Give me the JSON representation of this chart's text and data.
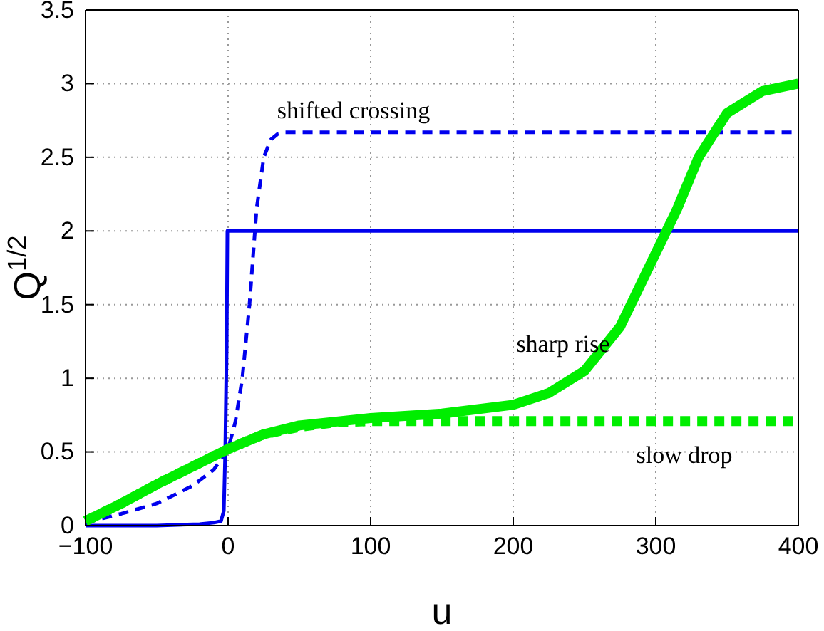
{
  "chart_data": {
    "type": "line",
    "xlabel": "u",
    "ylabel": "Q$^{1/2}$",
    "xlim": [
      -100,
      400
    ],
    "ylim": [
      0,
      3.5
    ],
    "xticks": [
      {
        "value": -100,
        "label": "−100"
      },
      0,
      100,
      200,
      300,
      400
    ],
    "yticks": [
      0,
      0.5,
      1,
      1.5,
      2,
      2.5,
      3,
      3.5
    ],
    "grid": true,
    "series": [
      {
        "color": "#0000ee",
        "line_style": "solid",
        "x": [
          -100,
          -50,
          -20,
          -10,
          -5,
          -3,
          -2,
          -1,
          -0.5,
          0,
          400
        ],
        "values": [
          0,
          0,
          0.01,
          0.02,
          0.03,
          0.1,
          0.5,
          1.2,
          2,
          2,
          2
        ]
      },
      {
        "color": "#0000ee",
        "line_style": "dashed",
        "x": [
          -100,
          -75,
          -50,
          -25,
          -10,
          0,
          5,
          10,
          15,
          20,
          25,
          30,
          35,
          40,
          400
        ],
        "values": [
          0.02,
          0.08,
          0.15,
          0.27,
          0.38,
          0.52,
          0.7,
          1,
          1.5,
          2.15,
          2.5,
          2.62,
          2.66,
          2.67,
          2.67
        ]
      },
      {
        "color": "#00ee00",
        "line_style": "dotted",
        "x": [
          -100,
          -75,
          -50,
          -25,
          0,
          25,
          50,
          75,
          100,
          400
        ],
        "values": [
          0.03,
          0.15,
          0.28,
          0.4,
          0.52,
          0.62,
          0.67,
          0.7,
          0.71,
          0.71
        ]
      },
      {
        "color": "#00ee00",
        "line_style": "solid",
        "x": [
          -100,
          -75,
          -50,
          -25,
          0,
          25,
          50,
          100,
          150,
          200,
          225,
          250,
          275,
          300,
          315,
          330,
          350,
          375,
          400
        ],
        "values": [
          0.03,
          0.15,
          0.28,
          0.4,
          0.52,
          0.62,
          0.68,
          0.73,
          0.76,
          0.82,
          0.9,
          1.05,
          1.35,
          1.85,
          2.15,
          2.5,
          2.8,
          2.95,
          3
        ]
      }
    ],
    "annotations": [
      "shifted crossing",
      "sharp rise",
      "slow drop"
    ]
  }
}
